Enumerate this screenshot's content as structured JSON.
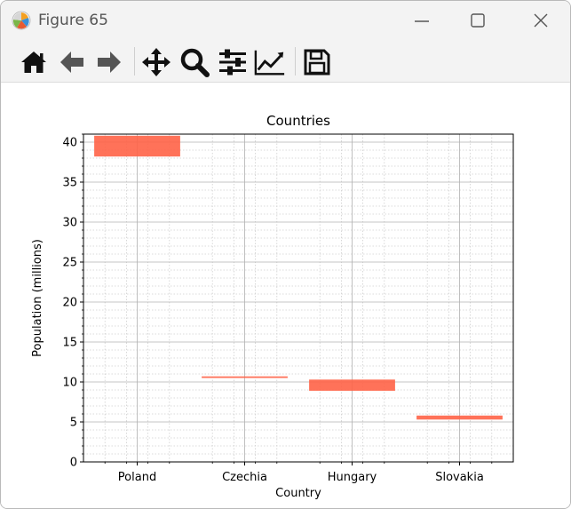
{
  "window": {
    "title": "Figure 65"
  },
  "toolbar": {
    "items": [
      "home-icon",
      "back-arrow-icon",
      "forward-arrow-icon",
      "pan-icon",
      "zoom-icon",
      "subplots-icon",
      "edit-curve-icon",
      "save-icon"
    ]
  },
  "colors": {
    "bar": "#ff6347",
    "grid_major": "#b0b0b0",
    "grid_minor": "#cfcfcf"
  },
  "chart_data": {
    "type": "bar",
    "title": "Countries",
    "xlabel": "Country",
    "ylabel": "Population (millions)",
    "categories": [
      "Poland",
      "Czechia",
      "Hungary",
      "Slovakia"
    ],
    "bars": [
      {
        "category": "Poland",
        "bottom": 38.2,
        "top": 40.8
      },
      {
        "category": "Czechia",
        "bottom": 10.5,
        "top": 10.7
      },
      {
        "category": "Hungary",
        "bottom": 8.9,
        "top": 10.3
      },
      {
        "category": "Slovakia",
        "bottom": 5.3,
        "top": 5.8
      }
    ],
    "ylim": [
      0,
      41
    ],
    "yticks": [
      0,
      5,
      10,
      15,
      20,
      25,
      30,
      35,
      40
    ],
    "grid": "major and minor"
  }
}
